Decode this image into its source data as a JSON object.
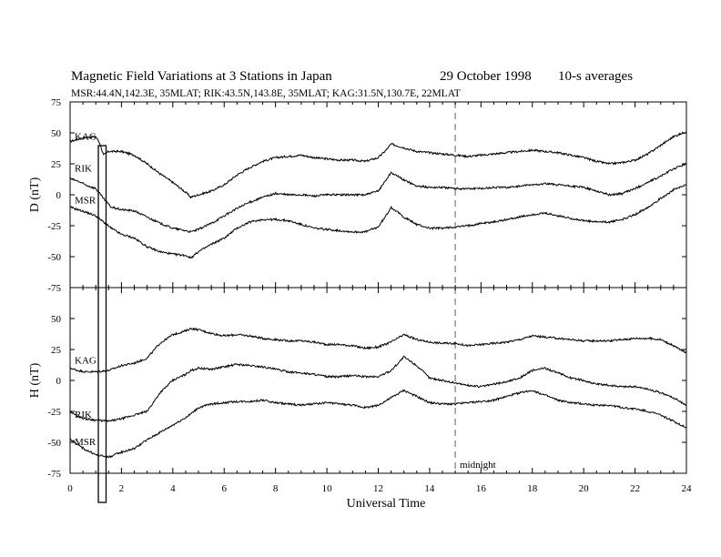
{
  "header": {
    "title": "Magnetic Field Variations at 3 Stations in Japan",
    "date": "29 October 1998",
    "averaging": "10-s averages",
    "stations_line": "MSR:44.4N,142.3E, 35MLAT;  RIK:43.5N,143.8E, 35MLAT;  KAG:31.5N,130.7E, 22MLAT"
  },
  "annotations": {
    "midnight_label": "midnight",
    "midnight_ut": 15,
    "marked_interval_ut": [
      1.1,
      1.4
    ]
  },
  "colors": {
    "trace": "#000000",
    "midnight_line": "#9a9a9a",
    "background": "#ffffff"
  },
  "chart_data": [
    {
      "type": "line",
      "ylabel": "D (nT)",
      "xlabel": "",
      "xlim": [
        0,
        24
      ],
      "ylim": [
        -75,
        75
      ],
      "yticks": [
        75,
        50,
        25,
        0,
        -25,
        -50,
        -75
      ],
      "xticks": [
        0,
        2,
        4,
        6,
        8,
        10,
        12,
        14,
        16,
        18,
        20,
        22,
        24
      ],
      "series": [
        {
          "name": "KAG",
          "x": [
            0,
            0.5,
            1.0,
            1.15,
            1.3,
            1.5,
            2,
            2.5,
            3,
            3.5,
            4,
            4.5,
            4.7,
            5,
            5.5,
            6,
            6.5,
            7,
            7.5,
            8,
            8.5,
            9,
            9.5,
            10,
            10.5,
            11,
            11.5,
            12,
            12.3,
            12.5,
            13,
            13.5,
            14,
            14.5,
            15,
            15.5,
            16,
            16.5,
            17,
            17.5,
            18,
            18.5,
            19,
            19.5,
            20,
            20.5,
            21,
            21.5,
            22,
            22.5,
            23,
            23.5,
            24
          ],
          "y": [
            43,
            46,
            47,
            42,
            32,
            35,
            35,
            32,
            25,
            17,
            10,
            2,
            -2,
            0,
            3,
            8,
            16,
            22,
            27,
            30,
            31,
            32,
            30,
            29,
            28,
            28,
            27,
            30,
            36,
            41,
            38,
            35,
            34,
            33,
            32,
            31,
            32,
            33,
            34,
            35,
            36,
            35,
            34,
            32,
            30,
            27,
            25,
            26,
            28,
            33,
            40,
            47,
            51
          ]
        },
        {
          "name": "RIK",
          "x": [
            0,
            0.3,
            0.6,
            1.0,
            1.3,
            1.6,
            2,
            2.5,
            3,
            3.5,
            4,
            4.5,
            4.7,
            5,
            5.5,
            6,
            6.5,
            7,
            7.5,
            8,
            8.5,
            9,
            9.5,
            10,
            10.5,
            11,
            11.5,
            12,
            12.3,
            12.5,
            13,
            13.5,
            14,
            14.5,
            15,
            15.5,
            16,
            16.5,
            17,
            17.5,
            18,
            18.5,
            19,
            19.5,
            20,
            20.5,
            21,
            21.5,
            22,
            22.5,
            23,
            23.5,
            24
          ],
          "y": [
            13,
            11,
            8,
            5,
            -3,
            -10,
            -12,
            -13,
            -18,
            -23,
            -27,
            -29,
            -30,
            -28,
            -23,
            -17,
            -11,
            -6,
            -2,
            1,
            0,
            0,
            -1,
            0,
            0,
            0,
            0,
            3,
            12,
            18,
            12,
            7,
            6,
            6,
            5,
            5,
            5,
            6,
            6,
            7,
            8,
            9,
            8,
            7,
            6,
            3,
            0,
            1,
            5,
            10,
            15,
            21,
            25
          ]
        },
        {
          "name": "MSR",
          "x": [
            0,
            0.3,
            0.6,
            1.0,
            1.3,
            1.6,
            2,
            2.5,
            3,
            3.5,
            4,
            4.5,
            4.7,
            5,
            5.5,
            6,
            6.5,
            7,
            7.5,
            8,
            8.5,
            9,
            9.5,
            10,
            10.5,
            11,
            11.5,
            12,
            12.3,
            12.5,
            13,
            13.5,
            14,
            14.5,
            15,
            15.5,
            16,
            16.5,
            17,
            17.5,
            18,
            18.5,
            19,
            19.5,
            20,
            20.5,
            21,
            21.5,
            22,
            22.5,
            23,
            23.5,
            24
          ],
          "y": [
            -10,
            -12,
            -14,
            -17,
            -22,
            -27,
            -32,
            -35,
            -42,
            -46,
            -48,
            -49,
            -51,
            -46,
            -40,
            -35,
            -27,
            -22,
            -20,
            -20,
            -21,
            -24,
            -27,
            -28,
            -29,
            -30,
            -30,
            -26,
            -17,
            -10,
            -18,
            -24,
            -27,
            -27,
            -26,
            -25,
            -23,
            -22,
            -20,
            -18,
            -16,
            -15,
            -17,
            -19,
            -21,
            -22,
            -22,
            -20,
            -16,
            -10,
            -3,
            4,
            8
          ]
        }
      ]
    },
    {
      "type": "line",
      "ylabel": "H (nT)",
      "xlabel": "Universal Time",
      "xlim": [
        0,
        24
      ],
      "ylim": [
        -75,
        75
      ],
      "yticks": [
        75,
        50,
        25,
        0,
        -25,
        -50,
        -75
      ],
      "xticks": [
        0,
        2,
        4,
        6,
        8,
        10,
        12,
        14,
        16,
        18,
        20,
        22,
        24
      ],
      "series": [
        {
          "name": "KAG",
          "x": [
            0,
            0.3,
            0.6,
            1.0,
            1.5,
            2,
            2.5,
            3,
            3.5,
            4,
            4.5,
            4.7,
            5,
            5.5,
            6,
            6.5,
            7,
            7.5,
            8,
            8.5,
            9,
            9.5,
            10,
            10.5,
            11,
            11.5,
            12,
            12.5,
            13,
            13.5,
            14,
            14.5,
            15,
            15.5,
            16,
            16.5,
            17,
            17.5,
            18,
            18.5,
            19,
            19.5,
            20,
            20.5,
            21,
            21.5,
            22,
            22.5,
            23,
            23.5,
            24
          ],
          "y": [
            10,
            8,
            7,
            7,
            8,
            12,
            14,
            18,
            30,
            37,
            40,
            42,
            41,
            38,
            36,
            37,
            36,
            34,
            33,
            32,
            32,
            31,
            29,
            29,
            28,
            26,
            27,
            31,
            37,
            33,
            31,
            30,
            30,
            28,
            29,
            30,
            31,
            33,
            36,
            35,
            34,
            33,
            32,
            32,
            32,
            33,
            34,
            34,
            33,
            28,
            22
          ]
        },
        {
          "name": "RIK",
          "x": [
            0,
            0.3,
            0.6,
            1.0,
            1.5,
            2,
            2.5,
            3,
            3.5,
            4,
            4.5,
            4.7,
            5,
            5.5,
            6,
            6.5,
            7,
            7.5,
            8,
            8.5,
            9,
            9.5,
            10,
            10.5,
            11,
            11.5,
            12,
            12.5,
            13,
            13.5,
            14,
            14.5,
            15,
            15.5,
            16,
            16.5,
            17,
            17.5,
            18,
            18.5,
            19,
            19.5,
            20,
            20.5,
            21,
            21.5,
            22,
            22.5,
            23,
            23.5,
            24
          ],
          "y": [
            -25,
            -29,
            -31,
            -32,
            -33,
            -31,
            -28,
            -25,
            -10,
            0,
            5,
            8,
            10,
            9,
            11,
            13,
            12,
            11,
            9,
            7,
            6,
            5,
            3,
            3,
            4,
            3,
            3,
            8,
            19,
            12,
            2,
            0,
            -2,
            -4,
            -5,
            -3,
            -1,
            2,
            8,
            10,
            6,
            2,
            0,
            -3,
            -4,
            -5,
            -5,
            -7,
            -10,
            -14,
            -20
          ]
        },
        {
          "name": "MSR",
          "x": [
            0,
            0.3,
            0.6,
            1.0,
            1.5,
            2,
            2.5,
            3,
            3.5,
            4,
            4.5,
            4.7,
            5,
            5.5,
            6,
            6.5,
            7,
            7.5,
            8,
            8.5,
            9,
            9.5,
            10,
            10.5,
            11,
            11.5,
            12,
            12.5,
            13,
            13.5,
            14,
            14.5,
            15,
            15.5,
            16,
            16.5,
            17,
            17.5,
            18,
            18.5,
            19,
            19.5,
            20,
            20.5,
            21,
            21.5,
            22,
            22.5,
            23,
            23.5,
            24
          ],
          "y": [
            -47,
            -52,
            -56,
            -60,
            -62,
            -58,
            -55,
            -48,
            -42,
            -36,
            -30,
            -27,
            -22,
            -19,
            -18,
            -17,
            -17,
            -16,
            -18,
            -19,
            -20,
            -19,
            -18,
            -19,
            -20,
            -22,
            -20,
            -14,
            -8,
            -13,
            -18,
            -19,
            -19,
            -18,
            -17,
            -16,
            -13,
            -10,
            -8,
            -12,
            -16,
            -18,
            -19,
            -20,
            -20,
            -22,
            -23,
            -25,
            -28,
            -33,
            -38
          ]
        }
      ]
    }
  ]
}
